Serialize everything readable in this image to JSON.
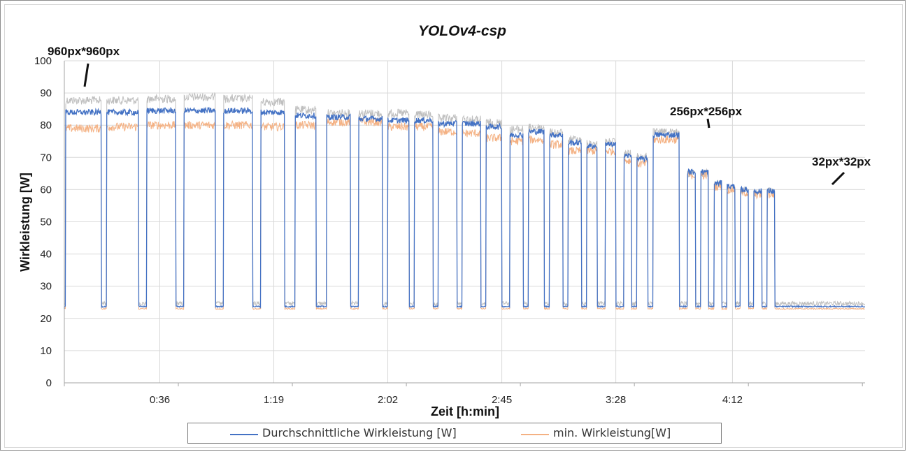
{
  "chart_data": {
    "type": "line",
    "title": "YOLOv4-csp",
    "xlabel": "Zeit [h:min]",
    "ylabel": "Wirkleistung [W]",
    "ylim": [
      0,
      100
    ],
    "yticks": [
      0,
      10,
      20,
      30,
      40,
      50,
      60,
      70,
      80,
      90,
      100
    ],
    "xlim_minutes": [
      0,
      302
    ],
    "xticks": [
      {
        "label": "0:36",
        "minute": 36
      },
      {
        "label": "1:19",
        "minute": 79
      },
      {
        "label": "2:02",
        "minute": 122
      },
      {
        "label": "2:45",
        "minute": 165
      },
      {
        "label": "3:28",
        "minute": 208
      },
      {
        "label": "4:12",
        "minute": 252
      }
    ],
    "grid": true,
    "legend_position": "bottom",
    "idle_power": 23,
    "series": [
      {
        "name": "Durchschnittliche Wirkleistung [W]",
        "color": "#4472c4"
      },
      {
        "name": "min. Wirkleistung[W]",
        "color": "#f4b183"
      },
      {
        "color": "#bfbfbf"
      }
    ],
    "segments": [
      {
        "start": 0.5,
        "end": 14,
        "avg": 84,
        "min": 79,
        "max": 89
      },
      {
        "start": 16,
        "end": 28,
        "avg": 84,
        "min": 79.5,
        "max": 89
      },
      {
        "start": 31,
        "end": 42,
        "avg": 84.5,
        "min": 80,
        "max": 89.5
      },
      {
        "start": 45,
        "end": 57,
        "avg": 84.5,
        "min": 80,
        "max": 90
      },
      {
        "start": 60,
        "end": 71,
        "avg": 84.5,
        "min": 80,
        "max": 89.5
      },
      {
        "start": 74,
        "end": 83,
        "avg": 84,
        "min": 79.5,
        "max": 88.5
      },
      {
        "start": 87,
        "end": 95,
        "avg": 83,
        "min": 80,
        "max": 86
      },
      {
        "start": 99,
        "end": 108,
        "avg": 82.5,
        "min": 81,
        "max": 85
      },
      {
        "start": 111,
        "end": 120,
        "avg": 82,
        "min": 81,
        "max": 85
      },
      {
        "start": 122,
        "end": 130,
        "avg": 81.5,
        "min": 79.5,
        "max": 85
      },
      {
        "start": 132,
        "end": 139,
        "avg": 81.5,
        "min": 79.5,
        "max": 84.5
      },
      {
        "start": 141,
        "end": 148,
        "avg": 80.5,
        "min": 78,
        "max": 83.5
      },
      {
        "start": 150,
        "end": 157,
        "avg": 80.5,
        "min": 77.5,
        "max": 83
      },
      {
        "start": 159,
        "end": 165,
        "avg": 79.5,
        "min": 76,
        "max": 82
      },
      {
        "start": 168,
        "end": 173,
        "avg": 77,
        "min": 75,
        "max": 80
      },
      {
        "start": 175,
        "end": 181,
        "avg": 78,
        "min": 75.5,
        "max": 80.5
      },
      {
        "start": 183,
        "end": 188,
        "avg": 77,
        "min": 74,
        "max": 79
      },
      {
        "start": 190,
        "end": 195,
        "avg": 74.5,
        "min": 72,
        "max": 77
      },
      {
        "start": 197,
        "end": 201,
        "avg": 73.5,
        "min": 72,
        "max": 75.5
      },
      {
        "start": 204,
        "end": 208,
        "avg": 74,
        "min": 72,
        "max": 76
      },
      {
        "start": 211,
        "end": 214,
        "avg": 70.5,
        "min": 69,
        "max": 72.5
      },
      {
        "start": 216,
        "end": 220,
        "avg": 69.5,
        "min": 68,
        "max": 71.5
      },
      {
        "start": 222,
        "end": 232,
        "avg": 77,
        "min": 75.5,
        "max": 79
      },
      {
        "start": 235,
        "end": 238,
        "avg": 65.5,
        "min": 64.5,
        "max": 66.5
      },
      {
        "start": 240,
        "end": 243,
        "avg": 65.5,
        "min": 64.5,
        "max": 66.5
      },
      {
        "start": 245,
        "end": 248,
        "avg": 62,
        "min": 61,
        "max": 63
      },
      {
        "start": 250,
        "end": 253,
        "avg": 61,
        "min": 60,
        "max": 62
      },
      {
        "start": 255,
        "end": 258,
        "avg": 60,
        "min": 59,
        "max": 61
      },
      {
        "start": 260,
        "end": 263,
        "avg": 59.5,
        "min": 58.5,
        "max": 60.5
      },
      {
        "start": 265,
        "end": 268,
        "avg": 59.5,
        "min": 58.5,
        "max": 61
      }
    ],
    "annotations": [
      {
        "text": "960px*960px",
        "target_minute": 8,
        "target_value": 91
      },
      {
        "text": "256px*256px",
        "target_minute": 228,
        "target_value": 80
      },
      {
        "text": "32px*32px",
        "target_minute": 266,
        "target_value": 61
      }
    ]
  },
  "legend": {
    "item1": "Durchschnittliche Wirkleistung [W]",
    "item2": "min. Wirkleistung[W]"
  }
}
